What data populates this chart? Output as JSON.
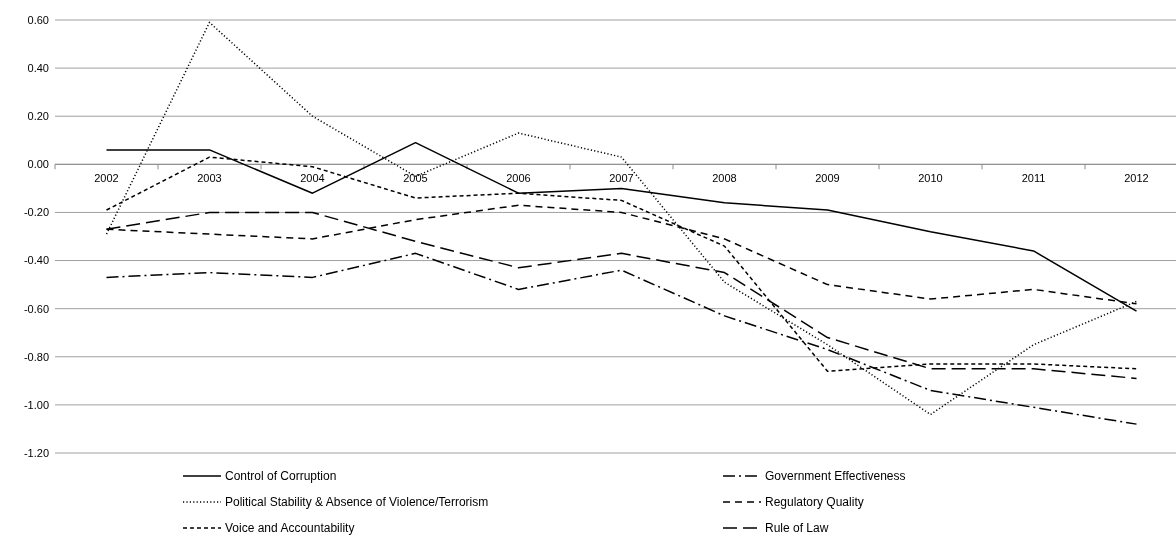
{
  "chart_data": {
    "type": "line",
    "categories": [
      "2002",
      "2003",
      "2004",
      "2005",
      "2006",
      "2007",
      "2008",
      "2009",
      "2010",
      "2011",
      "2012"
    ],
    "series": [
      {
        "name": "Control of Corruption",
        "color": "#000000",
        "line_style": "solid",
        "values": [
          0.06,
          0.06,
          -0.12,
          0.09,
          -0.12,
          -0.1,
          -0.16,
          -0.19,
          -0.28,
          -0.36,
          -0.61
        ]
      },
      {
        "name": "Government Effectiveness",
        "color": "#000000",
        "line_style": "dashdot",
        "values": [
          -0.47,
          -0.45,
          -0.47,
          -0.37,
          -0.52,
          -0.44,
          -0.63,
          -0.77,
          -0.94,
          -1.01,
          -1.08
        ]
      },
      {
        "name": "Political Stability & Absence of Violence/Terrorism",
        "color": "#000000",
        "line_style": "dotted",
        "values": [
          -0.29,
          0.59,
          0.2,
          -0.05,
          0.13,
          0.03,
          -0.49,
          -0.75,
          -1.04,
          -0.75,
          -0.57
        ]
      },
      {
        "name": "Regulatory Quality",
        "color": "#000000",
        "line_style": "dashed",
        "values": [
          -0.27,
          -0.29,
          -0.31,
          -0.23,
          -0.17,
          -0.2,
          -0.31,
          -0.5,
          -0.56,
          -0.52,
          -0.58
        ]
      },
      {
        "name": "Voice and Accountability",
        "color": "#000000",
        "line_style": "shortdash",
        "values": [
          -0.19,
          0.03,
          -0.01,
          -0.14,
          -0.12,
          -0.15,
          -0.34,
          -0.86,
          -0.83,
          -0.83,
          -0.85
        ]
      },
      {
        "name": "Rule of Law",
        "color": "#000000",
        "line_style": "longdash",
        "values": [
          -0.27,
          -0.2,
          -0.2,
          -0.32,
          -0.43,
          -0.37,
          -0.45,
          -0.72,
          -0.85,
          -0.85,
          -0.89
        ]
      }
    ],
    "ylim": [
      -1.2,
      0.6
    ],
    "yticks": [
      {
        "value": 0.6,
        "label": "0.60"
      },
      {
        "value": 0.4,
        "label": "0.40"
      },
      {
        "value": 0.2,
        "label": "0.20"
      },
      {
        "value": 0,
        "label": "0.00"
      },
      {
        "value": -0.2,
        "label": "-0.20"
      },
      {
        "value": -0.4,
        "label": "-0.40"
      },
      {
        "value": -0.6,
        "label": "-0.60"
      },
      {
        "value": -0.8,
        "label": "-0.80"
      },
      {
        "value": -1,
        "label": "-1.00"
      },
      {
        "value": -1.2,
        "label": "-1.20"
      }
    ],
    "grid": "y",
    "legend": "bottom",
    "marker": "none"
  }
}
